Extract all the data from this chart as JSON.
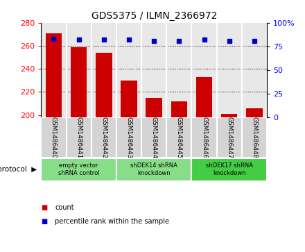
{
  "title": "GDS5375 / ILMN_2366972",
  "samples": [
    "GSM1486440",
    "GSM1486441",
    "GSM1486442",
    "GSM1486443",
    "GSM1486444",
    "GSM1486445",
    "GSM1486446",
    "GSM1486447",
    "GSM1486448"
  ],
  "counts": [
    271,
    259,
    254,
    230,
    215,
    212,
    233,
    201,
    206
  ],
  "percentiles": [
    83,
    82,
    82,
    82,
    81,
    81,
    82,
    81,
    81
  ],
  "ylim_left": [
    198,
    280
  ],
  "ylim_right": [
    0,
    100
  ],
  "yticks_left": [
    200,
    220,
    240,
    260,
    280
  ],
  "yticks_right": [
    0,
    25,
    50,
    75,
    100
  ],
  "bar_color": "#cc0000",
  "dot_color": "#0000cc",
  "cell_bg": "#d4d4d4",
  "plot_bg": "#e8e8e8",
  "protocol_groups": [
    {
      "label": "empty vector\nshRNA control",
      "start": 0,
      "end": 3,
      "color": "#88dd88"
    },
    {
      "label": "shDEK14 shRNA\nknockdown",
      "start": 3,
      "end": 6,
      "color": "#88dd88"
    },
    {
      "label": "shDEK17 shRNA\nknockdown",
      "start": 6,
      "end": 9,
      "color": "#44cc44"
    }
  ],
  "legend_items": [
    {
      "label": "count",
      "color": "#cc0000",
      "marker": "s"
    },
    {
      "label": "percentile rank within the sample",
      "color": "#0000cc",
      "marker": "s"
    }
  ],
  "protocol_label": "protocol",
  "bar_width": 0.65,
  "title_fontsize": 10
}
